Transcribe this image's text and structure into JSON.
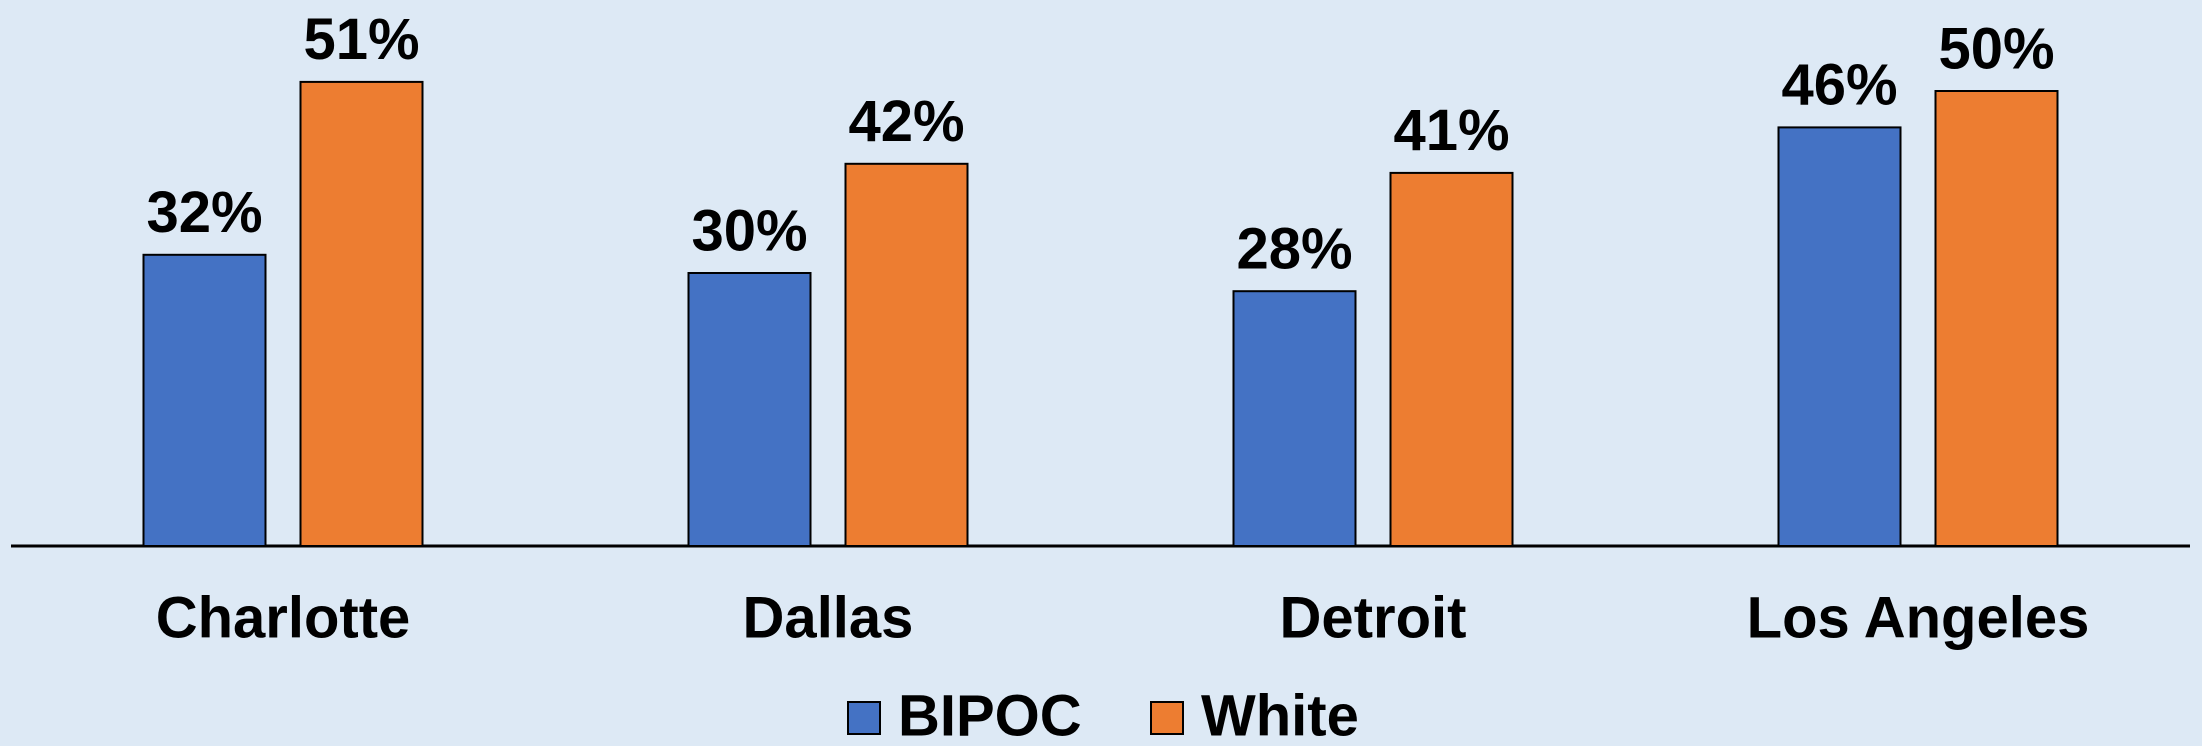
{
  "chart_data": {
    "type": "bar",
    "categories": [
      "Charlotte",
      "Dallas",
      "Detroit",
      "Los Angeles"
    ],
    "series": [
      {
        "name": "BIPOC",
        "color": "#4472c4",
        "values": [
          32,
          30,
          28,
          46
        ],
        "value_labels": [
          "32%",
          "30%",
          "28%",
          "46%"
        ]
      },
      {
        "name": "White",
        "color": "#ed7d31",
        "values": [
          51,
          42,
          41,
          50
        ],
        "value_labels": [
          "51%",
          "42%",
          "41%",
          "50%"
        ]
      }
    ],
    "ylim": [
      0,
      60
    ],
    "legend": "bottom"
  }
}
